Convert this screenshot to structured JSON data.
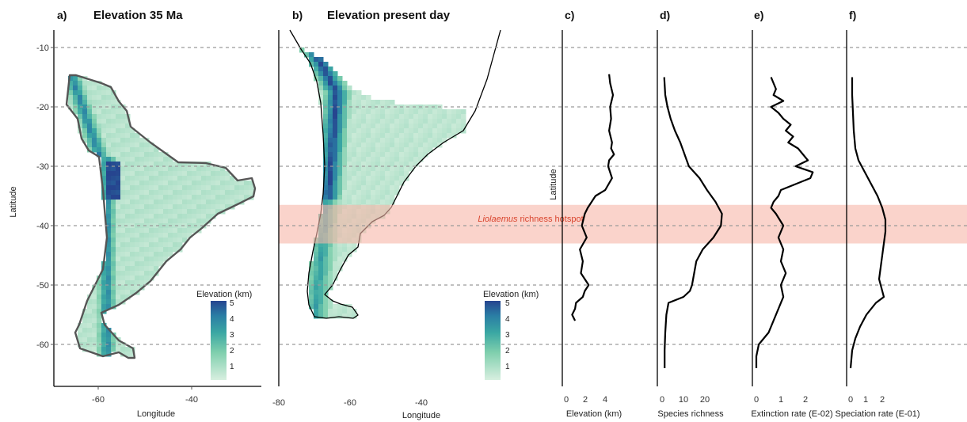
{
  "panels": {
    "a": {
      "letter": "a)",
      "title": "Elevation 35 Ma",
      "xlabel": "Longitude",
      "ylabel": "Latitude",
      "xticks": [
        "-60",
        "-40"
      ],
      "yticks": [
        "-10",
        "-20",
        "-30",
        "-40",
        "-50",
        "-60"
      ]
    },
    "b": {
      "letter": "b)",
      "title": "Elevation present day",
      "xlabel": "Longitude",
      "xticks": [
        "-80",
        "-60",
        "-40"
      ]
    },
    "c": {
      "letter": "c)",
      "xlabel": "Elevation (km)",
      "ylabel": "Latitude",
      "xticks": [
        "0",
        "2",
        "4"
      ]
    },
    "d": {
      "letter": "d)",
      "xlabel": "Species richness",
      "xticks": [
        "0",
        "10",
        "20"
      ]
    },
    "e": {
      "letter": "e)",
      "xlabel": "Extinction rate (E-02)",
      "xticks": [
        "0",
        "1",
        "2"
      ]
    },
    "f": {
      "letter": "f)",
      "xlabel": "Speciation rate (E-01)",
      "xticks": [
        "0",
        "1",
        "2"
      ]
    }
  },
  "legend": {
    "title": "Elevation (km)",
    "ticks": [
      "5",
      "4",
      "3",
      "2",
      "1"
    ]
  },
  "hotspot": {
    "label_italic": "Liolaemus",
    "label_rest": " richness hotspot",
    "lat_range": [
      -36.5,
      -43
    ],
    "color": "#f6b5a9"
  },
  "colors": {
    "low": "#d8efe0",
    "mid": "#3aa7a3",
    "high": "#26458f"
  },
  "chart_data": [
    {
      "panel": "a",
      "type": "heatmap",
      "title": "Elevation 35 Ma",
      "xlabel": "Longitude",
      "ylabel": "Latitude",
      "xlim": [
        -71,
        -33
      ],
      "ylim": [
        -67,
        -7
      ],
      "grid": "horizontal dashed",
      "legend": {
        "title": "Elevation (km)",
        "range": [
          0.5,
          5
        ]
      }
    },
    {
      "panel": "b",
      "type": "heatmap",
      "title": "Elevation present day",
      "xlabel": "Longitude",
      "xlim": [
        -81,
        -33
      ],
      "ylim": [
        -67,
        -7
      ],
      "grid": "horizontal dashed",
      "legend": {
        "title": "Elevation (km)",
        "range": [
          0.5,
          5
        ]
      }
    },
    {
      "panel": "c",
      "type": "line",
      "xlabel": "Elevation (km)",
      "ylabel": "Latitude",
      "xlim": [
        -0.2,
        5.8
      ],
      "ylim": [
        -67,
        -7
      ],
      "lat": [
        -14.5,
        -16,
        -18,
        -20,
        -22,
        -24,
        -26,
        -27,
        -28,
        -29,
        -30,
        -32,
        -34,
        -35,
        -36,
        -37,
        -38,
        -40,
        -42,
        -44,
        -46,
        -48,
        -50,
        -51,
        -52,
        -53,
        -54,
        -55,
        -56
      ],
      "value": [
        4.4,
        4.5,
        4.8,
        4.5,
        4.6,
        4.4,
        4.7,
        4.6,
        4.9,
        4.4,
        4.3,
        4.7,
        4.0,
        3.0,
        2.6,
        2.2,
        1.9,
        1.6,
        2.1,
        1.4,
        1.7,
        1.5,
        2.3,
        1.9,
        1.7,
        1.0,
        0.9,
        0.6,
        0.9
      ]
    },
    {
      "panel": "d",
      "type": "line",
      "xlabel": "Species richness",
      "xlim": [
        -1,
        32
      ],
      "ylim": [
        -67,
        -7
      ],
      "lat": [
        -15,
        -18,
        -20,
        -22,
        -24,
        -26,
        -28,
        -30,
        -32,
        -34,
        -36,
        -38,
        -40,
        -42,
        -44,
        -46,
        -48,
        -50,
        -51,
        -52,
        -53,
        -55,
        -58,
        -61,
        -64
      ],
      "value": [
        1,
        1.5,
        2.5,
        4,
        6,
        8.5,
        10.5,
        12.5,
        17.5,
        21,
        25,
        28,
        27.5,
        24,
        19,
        16,
        15,
        14,
        13,
        10,
        3,
        2,
        1.5,
        1.2,
        1.2
      ]
    },
    {
      "panel": "e",
      "type": "line",
      "xlabel": "Extinction rate (E-02)",
      "xlim": [
        -0.1,
        2.8
      ],
      "ylim": [
        -67,
        -7
      ],
      "lat": [
        -15,
        -17,
        -18,
        -19,
        -20,
        -21,
        -22,
        -23,
        -24,
        -25,
        -26,
        -27,
        -28,
        -29,
        -30,
        -31,
        -32,
        -33,
        -34,
        -35,
        -36,
        -37,
        -38,
        -40,
        -42,
        -44,
        -46,
        -48,
        -50,
        -52,
        -54,
        -56,
        -58,
        -60,
        -62,
        -64
      ],
      "value": [
        0.6,
        0.8,
        0.7,
        1.1,
        0.6,
        0.9,
        1.1,
        1.4,
        1.2,
        1.5,
        1.3,
        1.7,
        1.9,
        2.1,
        1.6,
        2.3,
        2.2,
        1.6,
        1.0,
        0.9,
        0.7,
        0.6,
        0.8,
        1.1,
        0.9,
        1.1,
        1.0,
        1.2,
        1.0,
        1.1,
        0.9,
        0.7,
        0.5,
        0.1,
        0.0,
        0.0
      ]
    },
    {
      "panel": "f",
      "type": "line",
      "xlabel": "Speciation rate (E-01)",
      "xlim": [
        -0.1,
        2.6
      ],
      "ylim": [
        -67,
        -7
      ],
      "lat": [
        -15,
        -18,
        -21,
        -24,
        -27,
        -29,
        -31,
        -33,
        -35,
        -37,
        -39,
        -41,
        -43,
        -45,
        -47,
        -49,
        -50,
        -51,
        -52,
        -53,
        -55,
        -57,
        -59,
        -61,
        -64
      ],
      "value": [
        0.1,
        0.1,
        0.15,
        0.2,
        0.3,
        0.5,
        0.9,
        1.3,
        1.7,
        2.0,
        2.2,
        2.2,
        2.1,
        2.0,
        1.9,
        1.8,
        1.9,
        2.0,
        2.1,
        1.6,
        1.0,
        0.6,
        0.3,
        0.1,
        0.0
      ]
    }
  ]
}
